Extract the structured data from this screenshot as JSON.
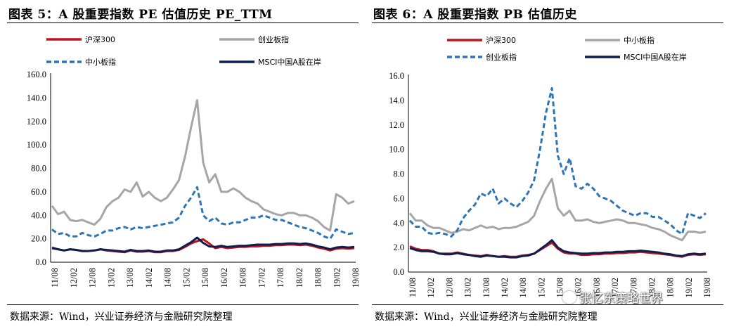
{
  "watermark": "张忆东策略世界",
  "chart_data": [
    {
      "type": "line",
      "title": "图表 5：A 股重要指数 PE 估值历史 PE_TTM",
      "source": "数据来源：Wind，兴业证券经济与金融研究院整理",
      "ylim": [
        0,
        160
      ],
      "yticks": [
        "0.0",
        "20.0",
        "40.0",
        "60.0",
        "80.0",
        "100.0",
        "120.0",
        "140.0",
        "160.0"
      ],
      "xticks": [
        "11/08",
        "12/02",
        "12/08",
        "13/02",
        "13/08",
        "14/02",
        "14/08",
        "15/02",
        "15/08",
        "16/02",
        "16/08",
        "17/02",
        "17/08",
        "18/02",
        "18/08",
        "19/02",
        "19/08"
      ],
      "legend": [
        "沪深300",
        "创业板指",
        "中小板指",
        "MSCI中国A股在岸"
      ],
      "series": [
        {
          "name": "沪深300",
          "color": "#c0141e",
          "dash": false,
          "values": [
            12.5,
            11,
            10,
            11,
            10.5,
            9.5,
            9.5,
            10,
            11,
            10,
            9.5,
            9,
            8.5,
            10,
            9,
            9,
            9.5,
            8.5,
            8.5,
            9.5,
            9.5,
            10.5,
            13,
            16,
            18,
            19.5,
            16,
            12,
            13,
            12,
            12.5,
            13,
            13,
            13.5,
            13.5,
            14,
            14,
            14.5,
            14.5,
            15,
            15,
            14.5,
            15,
            14,
            12.5,
            11.5,
            10,
            11.5,
            12,
            11.5,
            12
          ]
        },
        {
          "name": "创业板指",
          "color": "#a6a6a6",
          "dash": false,
          "values": [
            48,
            41,
            43,
            36,
            35,
            36,
            34,
            32,
            37,
            47,
            52,
            55,
            62,
            60,
            68,
            56,
            60,
            55,
            52,
            55,
            62,
            70,
            90,
            115,
            138,
            85,
            68,
            75,
            60,
            60,
            63,
            60,
            55,
            52,
            50,
            45,
            43,
            41,
            40,
            42,
            42,
            40,
            40,
            38,
            35,
            30,
            27,
            58,
            55,
            50,
            52
          ]
        },
        {
          "name": "中小板指",
          "color": "#2e75b6",
          "dash": true,
          "values": [
            28,
            24,
            25,
            22,
            22,
            25,
            23,
            22,
            24,
            27,
            27,
            29,
            30,
            28,
            30,
            29,
            30,
            31,
            32,
            33,
            34,
            38,
            48,
            55,
            64,
            40,
            35,
            38,
            33,
            32,
            34,
            34,
            36,
            38,
            38,
            40,
            38,
            36,
            36,
            34,
            32,
            30,
            29,
            27,
            25,
            22,
            20,
            28,
            26,
            24,
            25
          ]
        },
        {
          "name": "MSCI中国A股在岸",
          "color": "#0d1f4f",
          "dash": false,
          "values": [
            12,
            11,
            10,
            11,
            10.5,
            9.5,
            9.5,
            10,
            11,
            10.5,
            10,
            9.5,
            9,
            10.5,
            9.5,
            9.5,
            10,
            9,
            9,
            10,
            10,
            11,
            14,
            17,
            21,
            16.5,
            13.5,
            13,
            14,
            13,
            13.5,
            14,
            14,
            14.5,
            15,
            15,
            15,
            15.5,
            15.5,
            16,
            16,
            15.5,
            16,
            15,
            13.5,
            12.5,
            11,
            12.5,
            13,
            12.5,
            13
          ]
        }
      ]
    },
    {
      "type": "line",
      "title": "图表 6：A 股重要指数 PB 估值历史",
      "source": "数据来源：Wind，兴业证券经济与金融研究院整理",
      "ylim": [
        0,
        16
      ],
      "yticks": [
        "0.0",
        "2.0",
        "4.0",
        "6.0",
        "8.0",
        "10.0",
        "12.0",
        "14.0",
        "16.0"
      ],
      "xticks": [
        "11/08",
        "12/02",
        "12/08",
        "13/02",
        "13/08",
        "14/02",
        "14/08",
        "15/02",
        "15/08",
        "16/02",
        "16/08",
        "17/02",
        "17/08",
        "18/02",
        "18/08",
        "19/02",
        "19/08"
      ],
      "legend": [
        "沪深300",
        "中小板指",
        "创业板指",
        "MSCI中国A股在岸"
      ],
      "series": [
        {
          "name": "沪深300",
          "color": "#c0141e",
          "dash": false,
          "values": [
            2.1,
            1.9,
            1.8,
            1.8,
            1.7,
            1.5,
            1.5,
            1.5,
            1.6,
            1.5,
            1.4,
            1.35,
            1.3,
            1.4,
            1.3,
            1.25,
            1.3,
            1.25,
            1.25,
            1.35,
            1.4,
            1.5,
            1.8,
            2.1,
            2.4,
            1.9,
            1.6,
            1.5,
            1.5,
            1.4,
            1.4,
            1.45,
            1.45,
            1.5,
            1.5,
            1.55,
            1.55,
            1.6,
            1.6,
            1.65,
            1.6,
            1.55,
            1.5,
            1.45,
            1.4,
            1.3,
            1.25,
            1.4,
            1.45,
            1.4,
            1.45
          ]
        },
        {
          "name": "中小板指",
          "color": "#a6a6a6",
          "dash": false,
          "values": [
            4.8,
            4.2,
            4.2,
            3.8,
            3.6,
            3.6,
            3.4,
            3.2,
            3.3,
            3.5,
            3.4,
            3.6,
            3.8,
            3.6,
            3.7,
            3.5,
            3.6,
            3.6,
            3.7,
            3.9,
            4.1,
            4.6,
            5.8,
            6.8,
            7.6,
            5.2,
            4.6,
            5.0,
            4.2,
            4.2,
            4.3,
            4.1,
            4.0,
            4.1,
            4.2,
            4.3,
            4.2,
            4.0,
            4.0,
            3.9,
            3.8,
            3.6,
            3.5,
            3.3,
            3.0,
            2.8,
            2.6,
            3.3,
            3.3,
            3.2,
            3.3
          ]
        },
        {
          "name": "创业板指",
          "color": "#2e75b6",
          "dash": true,
          "values": [
            4.2,
            3.7,
            3.7,
            3.2,
            3.1,
            3.2,
            3.1,
            2.9,
            3.4,
            4.4,
            5.0,
            5.5,
            6.4,
            6.2,
            6.8,
            5.6,
            6.0,
            5.6,
            5.3,
            5.8,
            6.5,
            7.5,
            10.0,
            13.0,
            15.0,
            9.5,
            8.0,
            9.3,
            7.0,
            6.8,
            7.2,
            6.8,
            6.2,
            6.0,
            5.8,
            5.4,
            5.0,
            4.8,
            4.6,
            4.8,
            4.8,
            4.5,
            4.5,
            4.2,
            3.9,
            3.4,
            3.1,
            4.8,
            4.6,
            4.4,
            4.8
          ]
        },
        {
          "name": "MSCI中国A股在岸",
          "color": "#0d1f4f",
          "dash": false,
          "values": [
            1.95,
            1.8,
            1.7,
            1.7,
            1.65,
            1.5,
            1.45,
            1.45,
            1.55,
            1.45,
            1.4,
            1.3,
            1.25,
            1.35,
            1.3,
            1.25,
            1.25,
            1.2,
            1.2,
            1.3,
            1.35,
            1.5,
            1.85,
            2.2,
            2.6,
            2.0,
            1.7,
            1.6,
            1.55,
            1.5,
            1.5,
            1.55,
            1.55,
            1.6,
            1.6,
            1.65,
            1.65,
            1.7,
            1.7,
            1.75,
            1.7,
            1.65,
            1.6,
            1.5,
            1.45,
            1.35,
            1.3,
            1.45,
            1.5,
            1.45,
            1.5
          ]
        }
      ]
    }
  ]
}
